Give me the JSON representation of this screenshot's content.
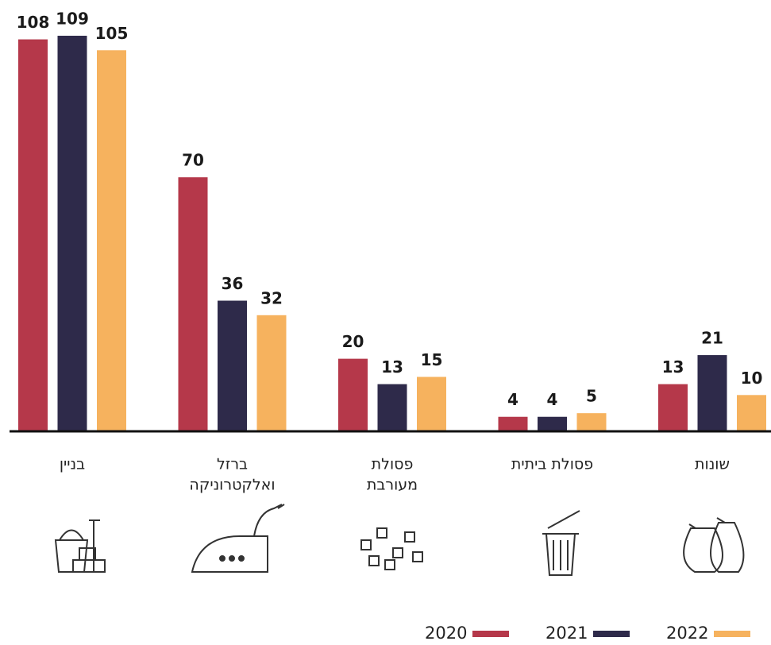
{
  "chart_data": {
    "type": "bar",
    "categories": [
      [
        "בניין"
      ],
      [
        "ברזל",
        "ואלקטרוניקה"
      ],
      [
        "פסולת",
        "מעורבת"
      ],
      [
        "פסולת ביתית"
      ],
      [
        "שונות"
      ]
    ],
    "series": [
      {
        "name": "2020",
        "color": "#b5384a",
        "values": [
          108,
          70,
          20,
          4,
          13
        ]
      },
      {
        "name": "2021",
        "color": "#2e2a4a",
        "values": [
          109,
          36,
          13,
          4,
          21
        ]
      },
      {
        "name": "2022",
        "color": "#f6b25e",
        "values": [
          105,
          32,
          15,
          5,
          10
        ]
      }
    ]
  }
}
